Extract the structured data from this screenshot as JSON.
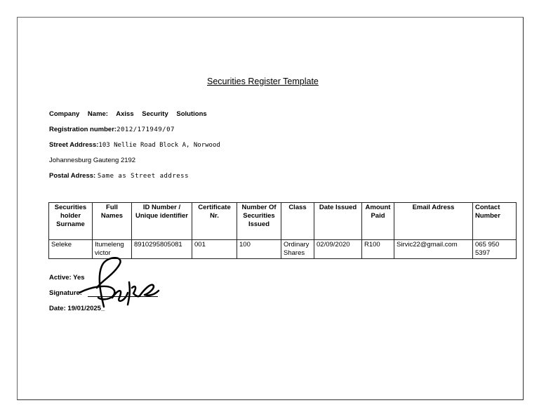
{
  "title": "Securities Register Template",
  "company": {
    "label": "Company Name:",
    "value": "Axiss Security Solutions"
  },
  "registration": {
    "label": "Registration number:",
    "value": "2012/171949/07"
  },
  "street": {
    "label": "Street Address:",
    "value": "103 Nellie Road Block A, Norwood",
    "line2": "Johannesburg Gauteng 2192"
  },
  "postal": {
    "label": "Postal Adress:",
    "value": "Same as Street address"
  },
  "table": {
    "headers": [
      "Securities holder Surname",
      "Full Names",
      "ID Number / Unique identifier",
      "Certificate Nr.",
      "Number Of Securities Issued",
      "Class",
      "Date Issued",
      "Amount Paid",
      "Email Adress",
      "Contact Number"
    ],
    "rows": [
      [
        "Seleke",
        "Itumeleng victor",
        "8910295805081",
        "001",
        "100",
        "Ordinary Shares",
        "02/09/2020",
        "R100",
        "Sirvic22@gmail.com",
        "065 950 5397"
      ]
    ]
  },
  "active": {
    "label": "Active:",
    "value": "Yes"
  },
  "signature": {
    "label": "Signature:",
    "image_text": "Seleke"
  },
  "date": {
    "label": "Date:",
    "value": "19/01/2025_"
  }
}
